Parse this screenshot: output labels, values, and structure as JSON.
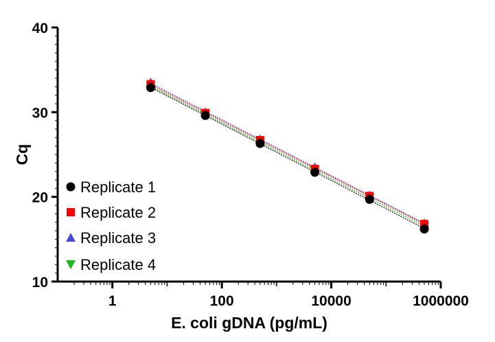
{
  "chart_data": {
    "type": "scatter",
    "title": "",
    "xlabel": "E. coli gDNA (pg/mL)",
    "ylabel": "Cq",
    "xscale": "log",
    "xlim": [
      0.1,
      1000000
    ],
    "ylim": [
      10,
      40
    ],
    "x_ticks": [
      1,
      100,
      10000,
      1000000
    ],
    "x_tick_labels": [
      "1",
      "100",
      "10000",
      "1000000"
    ],
    "y_ticks": [
      10,
      20,
      30,
      40
    ],
    "y_tick_labels": [
      "10",
      "20",
      "30",
      "40"
    ],
    "grid": false,
    "legend_position": "bottom-left",
    "fit_lines": true,
    "x": [
      5,
      50,
      500,
      5000,
      50000,
      500000
    ],
    "series": [
      {
        "name": "Replicate 1",
        "marker": "circle",
        "color": "#000000",
        "values": [
          32.9,
          29.6,
          26.3,
          22.9,
          19.7,
          16.2
        ]
      },
      {
        "name": "Replicate 2",
        "marker": "square",
        "color": "#ff0000",
        "values": [
          33.3,
          29.9,
          26.7,
          23.3,
          20.1,
          16.8
        ]
      },
      {
        "name": "Replicate 3",
        "marker": "triangle-up",
        "color": "#4a4ad8",
        "values": [
          33.5,
          30.0,
          26.8,
          23.5,
          20.2,
          16.9
        ]
      },
      {
        "name": "Replicate 4",
        "marker": "triangle-down",
        "color": "#1fb51f",
        "values": [
          33.1,
          29.7,
          26.5,
          23.1,
          19.9,
          16.5
        ]
      }
    ]
  }
}
